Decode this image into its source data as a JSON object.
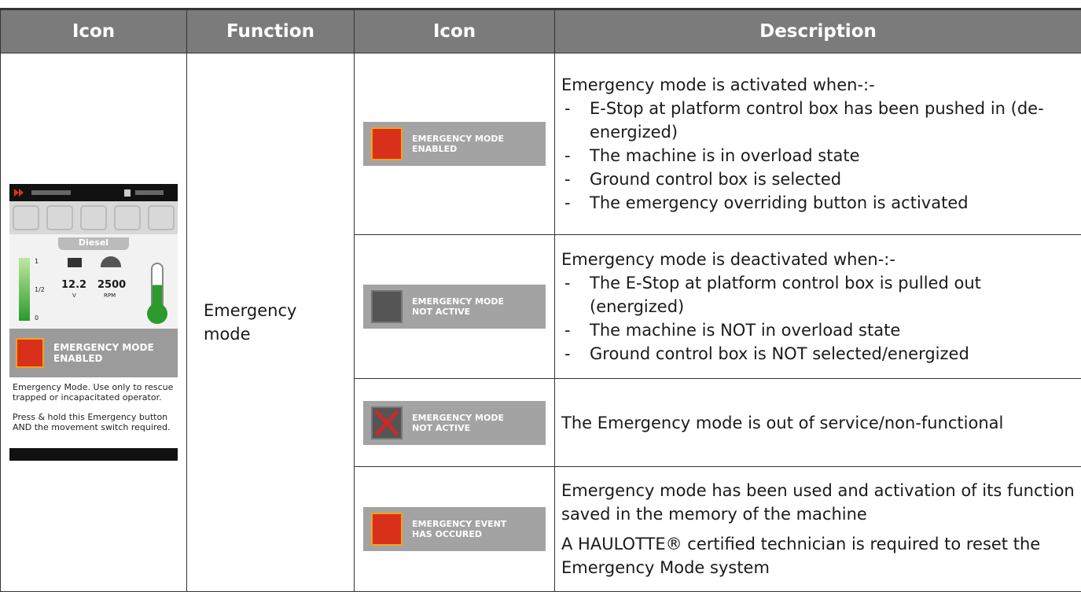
{
  "table": {
    "headers": [
      "Icon",
      "Function",
      "Icon",
      "Description"
    ],
    "function": "Emergency mode",
    "screen": {
      "fuel": "Diesel",
      "gauge_labels": [
        "1",
        "1/2",
        "0"
      ],
      "voltage": "12.2",
      "voltage_unit": "V",
      "rpm": "2500",
      "rpm_unit": "RPM",
      "banner": [
        "EMERGENCY MODE",
        "ENABLED"
      ],
      "notes": [
        "Emergency Mode. Use only to rescue trapped or incapacitated operator.",
        "Press & hold this Emergency button AND the movement switch required."
      ]
    },
    "rows": [
      {
        "badge": [
          "EMERGENCY MODE",
          "ENABLED"
        ],
        "paragraphs": [
          "Emergency mode is activated when-:-"
        ],
        "bullets": [
          "E-Stop at platform control box has been pushed in (de-energized)",
          "The machine is in overload state",
          "Ground control box is selected",
          "The emergency overriding button is activated"
        ]
      },
      {
        "badge": [
          "EMERGENCY MODE",
          "NOT ACTIVE"
        ],
        "paragraphs": [
          "Emergency mode is deactivated when-:-"
        ],
        "bullets": [
          "The E-Stop at platform control box is pulled out (energized)",
          "The machine is NOT in overload state",
          "Ground control box is NOT selected/energized"
        ]
      },
      {
        "badge": [
          "EMERGENCY MODE",
          "NOT ACTIVE"
        ],
        "paragraphs": [
          "The Emergency mode is out of service/non-functional"
        ]
      },
      {
        "badge": [
          "EMERGENCY EVENT",
          "HAS OCCURED"
        ],
        "paragraphs": [
          "Emergency mode has been used and activation of its function saved in the memory of the machine",
          "A HAULOTTE® certified technician is required to reset the Emergency Mode system"
        ]
      }
    ]
  }
}
